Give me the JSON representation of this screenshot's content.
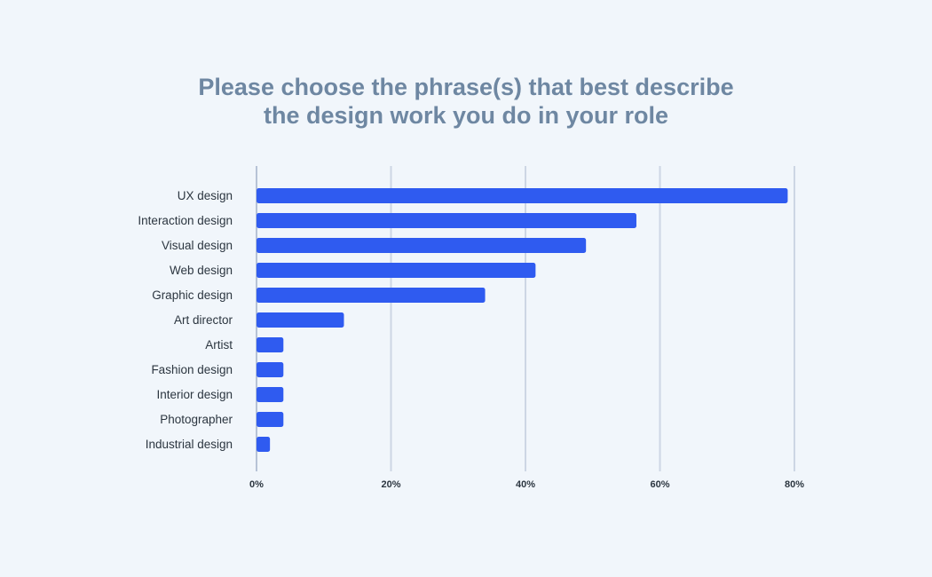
{
  "chart_data": {
    "type": "bar",
    "orientation": "horizontal",
    "title": [
      "Please choose the phrase(s) that best describe",
      "the design work you do in your role"
    ],
    "categories": [
      "UX design",
      "Interaction design",
      "Visual design",
      "Web design",
      "Graphic design",
      "Art director",
      "Artist",
      "Fashion design",
      "Interior design",
      "Photographer",
      "Industrial design"
    ],
    "values": [
      79,
      56.5,
      49,
      41.5,
      34,
      13,
      4,
      4,
      4,
      4,
      2
    ],
    "xlim": [
      0,
      80
    ],
    "xticks": [
      0,
      20,
      40,
      60,
      80
    ],
    "xtick_labels": [
      "0%",
      "20%",
      "40%",
      "60%",
      "80%"
    ],
    "grid": true,
    "bar_color": "#2f5bf0",
    "grid_color": "#cdd6e4",
    "axis_color": "#b7c3d6"
  }
}
